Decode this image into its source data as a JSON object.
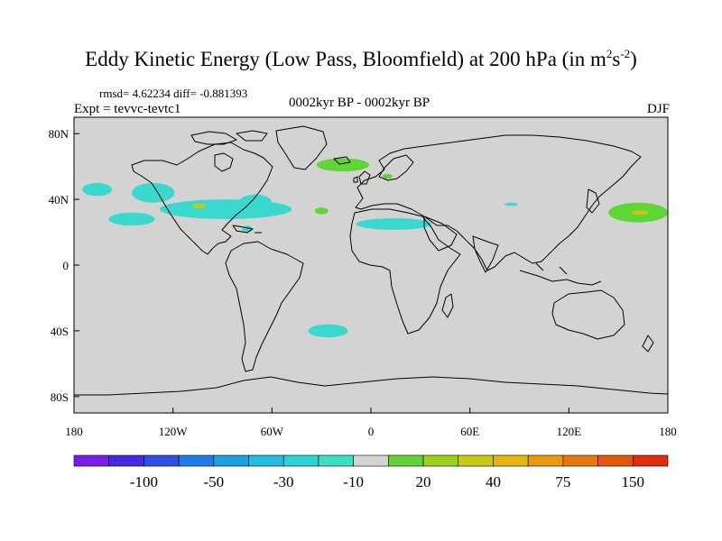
{
  "title": {
    "main": "Eddy Kinetic Energy (Low Pass, Bloomfield) at 200 hPa (in m",
    "sup1": "2",
    "mid": "s",
    "sup2": "-2",
    "end": ")"
  },
  "stats": "rmsd= 4.62234 diff= -0.881393",
  "experiment": "Expt = tevvc-tevtc1",
  "period": "0002kyr BP - 0002kyr BP",
  "season": "DJF",
  "map": {
    "lon_range": [
      -180,
      180
    ],
    "lat_range": [
      -90,
      90
    ],
    "ocean_color": "#d3d3d3",
    "x_ticks": [
      {
        "value": -180,
        "label": "180"
      },
      {
        "value": -120,
        "label": "120W"
      },
      {
        "value": -60,
        "label": "60W"
      },
      {
        "value": 0,
        "label": "0"
      },
      {
        "value": 60,
        "label": "60E"
      },
      {
        "value": 120,
        "label": "120E"
      },
      {
        "value": 180,
        "label": "180"
      }
    ],
    "y_ticks": [
      {
        "value": 80,
        "label": "80N"
      },
      {
        "value": 40,
        "label": "40N"
      },
      {
        "value": 0,
        "label": "0"
      },
      {
        "value": -40,
        "label": "40S"
      },
      {
        "value": -80,
        "label": "80S"
      }
    ],
    "anomalies": [
      {
        "name": "npac-west",
        "lon": -166,
        "lat": 46,
        "rlon": 9,
        "rlat": 4,
        "color": "#3ad8cf"
      },
      {
        "name": "npac-mid",
        "lon": -132,
        "lat": 44,
        "rlon": 13,
        "rlat": 6,
        "color": "#3ad8cf"
      },
      {
        "name": "npac-south",
        "lon": -145,
        "lat": 28,
        "rlon": 14,
        "rlat": 4,
        "color": "#3ad8cf"
      },
      {
        "name": "namerica-band",
        "lon": -88,
        "lat": 34,
        "rlon": 40,
        "rlat": 6,
        "color": "#3ad8cf"
      },
      {
        "name": "namerica-east",
        "lon": -70,
        "lat": 38,
        "rlon": 10,
        "rlat": 5,
        "color": "#3ad8cf"
      },
      {
        "name": "caribbean",
        "lon": -75,
        "lat": 22,
        "rlon": 3,
        "rlat": 2,
        "color": "#3ad8cf"
      },
      {
        "name": "natl-south",
        "lon": -26,
        "lat": -40,
        "rlon": 12,
        "rlat": 4,
        "color": "#3ad8cf"
      },
      {
        "name": "saharan-band",
        "lon": 14,
        "lat": 25,
        "rlon": 23,
        "rlat": 3.5,
        "color": "#3ad8cf"
      },
      {
        "name": "indian-small",
        "lon": 85,
        "lat": 37,
        "rlon": 4,
        "rlat": 1,
        "color": "#3ad8cf"
      },
      {
        "name": "natl-north",
        "lon": -17,
        "lat": 61,
        "rlon": 16,
        "rlat": 4,
        "color": "#5ed633"
      },
      {
        "name": "scandinavia",
        "lon": 10,
        "lat": 54,
        "rlon": 3,
        "rlat": 1.5,
        "color": "#5ed633"
      },
      {
        "name": "azores",
        "lon": -30,
        "lat": 33,
        "rlon": 4,
        "rlat": 2,
        "color": "#5ed633"
      },
      {
        "name": "nwpac",
        "lon": 162,
        "lat": 32,
        "rlon": 18,
        "rlat": 6,
        "color": "#5ed633"
      },
      {
        "name": "nwpac-core",
        "lon": 163,
        "lat": 32,
        "rlon": 5,
        "rlat": 1.5,
        "color": "#c8c21a"
      },
      {
        "name": "pac-core",
        "lon": -104,
        "lat": 36,
        "rlon": 4,
        "rlat": 1.5,
        "color": "#b8d01a"
      }
    ]
  },
  "colorbar": {
    "colors": [
      "#7a1ee6",
      "#4a27e0",
      "#2f4fe3",
      "#1f7ce6",
      "#1d9fe0",
      "#20bde0",
      "#2ad3d6",
      "#3be0bd",
      "#d3d3d3",
      "#62d13a",
      "#9ad21e",
      "#c6cc12",
      "#e5b510",
      "#ea9a0e",
      "#e7780d",
      "#e4560b",
      "#de2e0c"
    ],
    "labels": [
      {
        "boundary": 2,
        "text": "-100"
      },
      {
        "boundary": 4,
        "text": "-50"
      },
      {
        "boundary": 6,
        "text": "-30"
      },
      {
        "boundary": 8,
        "text": "-10"
      },
      {
        "boundary": 10,
        "text": "20"
      },
      {
        "boundary": 12,
        "text": "40"
      },
      {
        "boundary": 14,
        "text": "75"
      },
      {
        "boundary": 16,
        "text": "150"
      }
    ]
  }
}
